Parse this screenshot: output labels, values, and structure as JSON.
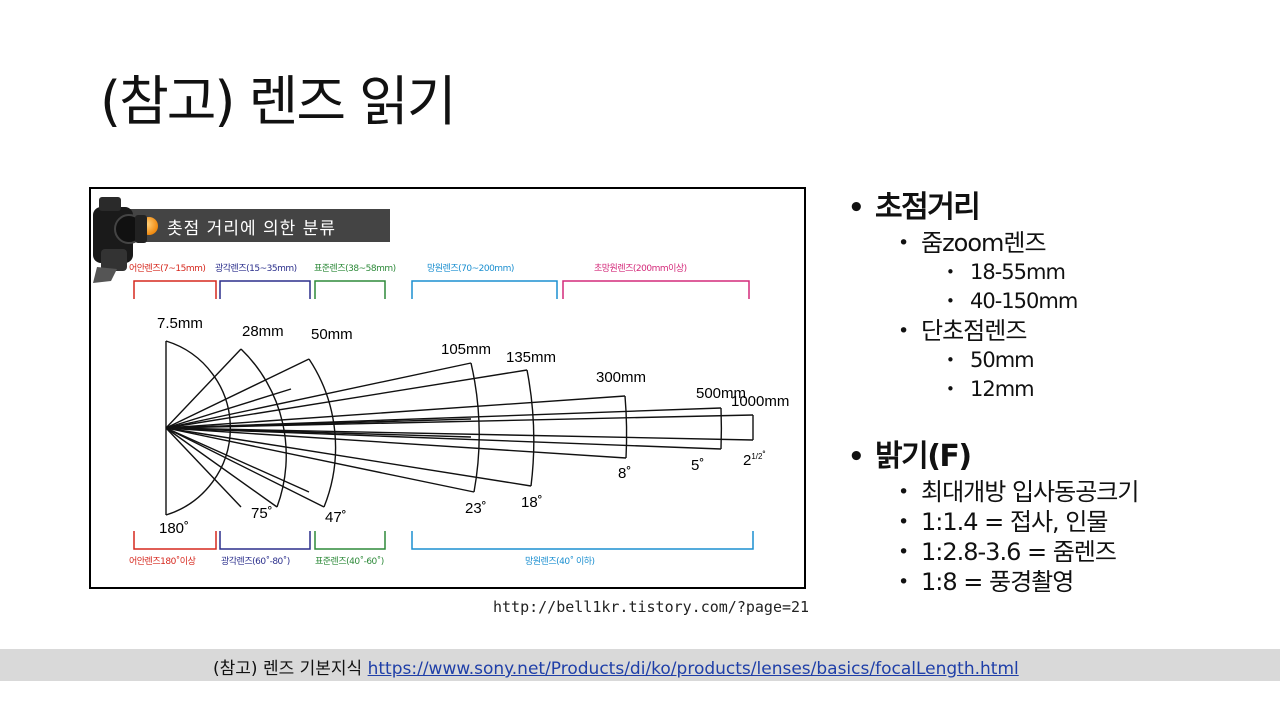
{
  "slide": {
    "title": "(참고) 렌즈 읽기"
  },
  "figure": {
    "badge": "촛점 거리에 의한 분류",
    "categories_top": [
      {
        "label": "어안렌즈(7~15mm)",
        "color": "#d6281e"
      },
      {
        "label": "광각렌즈(15~35mm)",
        "color": "#2b2f8c"
      },
      {
        "label": "표준렌즈(38~58mm)",
        "color": "#2e8a3a"
      },
      {
        "label": "망원렌즈(70~200mm)",
        "color": "#1b8fd0"
      },
      {
        "label": "초망원렌즈(200mm이상)",
        "color": "#d42a7a"
      }
    ],
    "categories_bottom": [
      {
        "label": "어안렌즈180˚이상",
        "color": "#d6281e"
      },
      {
        "label": "광각렌즈(60˚-80˚)",
        "color": "#2b2f8c"
      },
      {
        "label": "표준렌즈(40˚-60˚)",
        "color": "#2e8a3a"
      },
      {
        "label": "망원렌즈(40˚ 이하)",
        "color": "#1b8fd0"
      }
    ],
    "focal_lengths": [
      "7.5mm",
      "28mm",
      "50mm",
      "105mm",
      "135mm",
      "300mm",
      "500mm",
      "1000mm"
    ],
    "angles": [
      "180˚",
      "75˚",
      "47˚",
      "23˚",
      "18˚",
      "8˚",
      "5˚",
      "2",
      "1/2",
      "˚"
    ],
    "camera_icon": "camera-icon",
    "bullet_orb_icon": "orange-orb-icon",
    "source": "http://bell1kr.tistory.com/?page=21"
  },
  "bullets": {
    "focal": {
      "heading": "초점거리",
      "zoom": "줌zoom렌즈",
      "zoom_items": [
        "18-55mm",
        "40-150mm"
      ],
      "prime": "단초점렌즈",
      "prime_items": [
        "50mm",
        "12mm"
      ]
    },
    "brightness": {
      "heading": "밝기(F)",
      "items": [
        "최대개방 입사동공크기",
        "1:1.4 = 접사, 인물",
        "1:2.8-3.6 = 줌렌즈",
        "1:8 = 풍경촬영"
      ]
    }
  },
  "footer": {
    "prefix": "(참고) 렌즈 기본지식 ",
    "link": "https://www.sony.net/Products/di/ko/products/lenses/basics/focalLength.html"
  }
}
